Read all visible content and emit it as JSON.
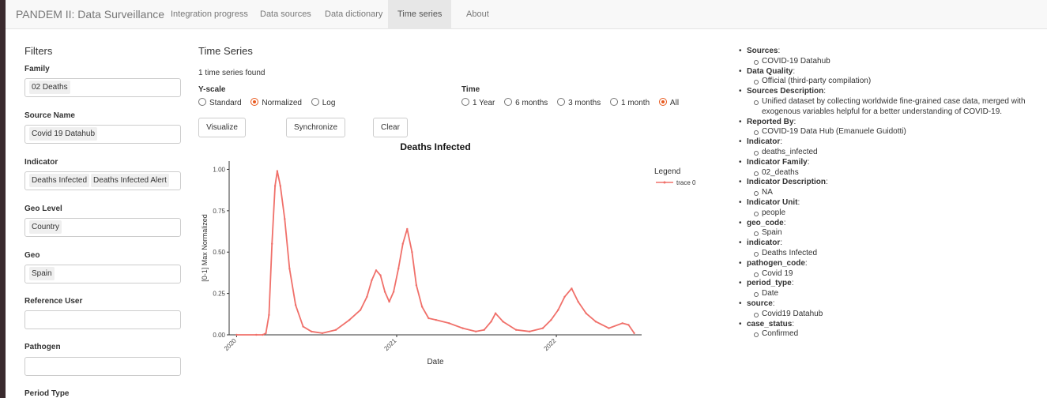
{
  "app": {
    "brand": "PANDEM II: Data Surveillance"
  },
  "nav": {
    "tabs": [
      "Integration progress",
      "Data sources",
      "Data dictionary",
      "Time series",
      "About"
    ],
    "active_index": 3
  },
  "filters": {
    "title": "Filters",
    "family": {
      "label": "Family",
      "value": "02 Deaths"
    },
    "source_name": {
      "label": "Source Name",
      "value": "Covid 19 Datahub"
    },
    "indicator": {
      "label": "Indicator",
      "values": [
        "Deaths Infected",
        "Deaths Infected Alert"
      ]
    },
    "geo_level": {
      "label": "Geo Level",
      "value": "Country"
    },
    "geo": {
      "label": "Geo",
      "value": "Spain"
    },
    "reference_user": {
      "label": "Reference User",
      "value": ""
    },
    "pathogen": {
      "label": "Pathogen",
      "value": ""
    },
    "period_type": {
      "label": "Period Type"
    }
  },
  "main": {
    "title": "Time Series",
    "found_text": "1 time series found",
    "yscale": {
      "label": "Y-scale",
      "options": [
        "Standard",
        "Normalized",
        "Log"
      ],
      "selected": "Normalized"
    },
    "time": {
      "label": "Time",
      "options": [
        "1 Year",
        "6 months",
        "3 months",
        "1 month",
        "All"
      ],
      "selected": "All"
    },
    "buttons": {
      "visualize": "Visualize",
      "synchronize": "Synchronize",
      "clear": "Clear"
    }
  },
  "chart_data": {
    "type": "line",
    "title": "Deaths Infected",
    "xlabel": "Date",
    "ylabel": "[0-1] Max Normalized",
    "x_ticks": [
      "2020",
      "2021",
      "2022"
    ],
    "y_ticks": [
      "0.00",
      "0.25",
      "0.50",
      "0.75",
      "1.00"
    ],
    "ylim": [
      0,
      1.05
    ],
    "xlim": [
      "2019-12-15",
      "2022-07-15"
    ],
    "legend": {
      "title": "Legend",
      "position": "right"
    },
    "series": [
      {
        "name": "trace 0",
        "color": "#f0706a",
        "x": [
          "2020-01-01",
          "2020-02-15",
          "2020-03-01",
          "2020-03-08",
          "2020-03-15",
          "2020-03-22",
          "2020-03-29",
          "2020-04-03",
          "2020-04-10",
          "2020-04-20",
          "2020-05-01",
          "2020-05-15",
          "2020-06-01",
          "2020-06-20",
          "2020-07-15",
          "2020-08-15",
          "2020-09-15",
          "2020-10-10",
          "2020-10-25",
          "2020-11-05",
          "2020-11-15",
          "2020-11-25",
          "2020-12-05",
          "2020-12-15",
          "2020-12-25",
          "2021-01-05",
          "2021-01-15",
          "2021-01-25",
          "2021-02-05",
          "2021-02-15",
          "2021-02-28",
          "2021-03-15",
          "2021-04-01",
          "2021-05-01",
          "2021-06-01",
          "2021-07-01",
          "2021-07-20",
          "2021-08-05",
          "2021-08-15",
          "2021-09-01",
          "2021-10-01",
          "2021-11-01",
          "2021-12-01",
          "2021-12-20",
          "2022-01-05",
          "2022-01-20",
          "2022-02-05",
          "2022-02-20",
          "2022-03-10",
          "2022-04-01",
          "2022-05-01",
          "2022-06-01",
          "2022-06-15",
          "2022-06-28"
        ],
        "y": [
          0,
          0,
          0,
          0.01,
          0.12,
          0.55,
          0.9,
          0.99,
          0.9,
          0.7,
          0.4,
          0.18,
          0.05,
          0.02,
          0.01,
          0.03,
          0.09,
          0.15,
          0.23,
          0.33,
          0.39,
          0.36,
          0.26,
          0.2,
          0.26,
          0.4,
          0.55,
          0.64,
          0.5,
          0.3,
          0.17,
          0.1,
          0.09,
          0.07,
          0.04,
          0.02,
          0.03,
          0.08,
          0.13,
          0.08,
          0.03,
          0.02,
          0.04,
          0.09,
          0.15,
          0.23,
          0.28,
          0.2,
          0.13,
          0.08,
          0.04,
          0.07,
          0.06,
          0.01
        ]
      }
    ]
  },
  "details": [
    {
      "key": "Sources",
      "value": "COVID-19 Datahub"
    },
    {
      "key": "Data Quality",
      "value": "Official (third-party compilation)"
    },
    {
      "key": "Sources Description",
      "value_lines": [
        "Unified dataset by collecting worldwide fine-grained case data, merged with",
        "exogenous variables helpful for a better understanding of COVID-19."
      ]
    },
    {
      "key": "Reported By",
      "value": "COVID-19 Data Hub (Emanuele Guidotti)"
    },
    {
      "key": "Indicator",
      "value": "deaths_infected"
    },
    {
      "key": "Indicator Family",
      "value": "02_deaths"
    },
    {
      "key": "Indicator Description",
      "value": "NA"
    },
    {
      "key": "Indicator Unit",
      "value": "people"
    },
    {
      "key": "geo_code",
      "value": "Spain"
    },
    {
      "key": "indicator",
      "value": "Deaths Infected"
    },
    {
      "key": "pathogen_code",
      "value": "Covid 19"
    },
    {
      "key": "period_type",
      "value": "Date"
    },
    {
      "key": "source",
      "value": "Covid19 Datahub"
    },
    {
      "key": "case_status",
      "value": "Confirmed"
    }
  ]
}
